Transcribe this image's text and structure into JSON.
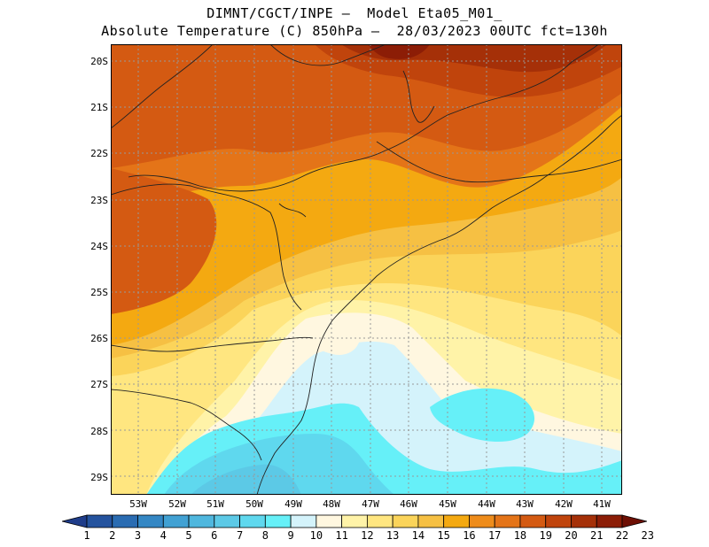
{
  "header": {
    "line1": "DIMNT/CGCT/INPE –  Model Eta05_M01_",
    "line2": "Absolute Temperature (C) 850hPa –  28/03/2023 00UTC fct=130h"
  },
  "map": {
    "lat_labels": [
      "20S",
      "21S",
      "22S",
      "23S",
      "24S",
      "25S",
      "26S",
      "27S",
      "28S",
      "29S"
    ],
    "lon_labels": [
      "53W",
      "52W",
      "51W",
      "50W",
      "49W",
      "48W",
      "47W",
      "46W",
      "45W",
      "44W",
      "43W",
      "42W",
      "41W"
    ]
  },
  "colorbar": {
    "labels": [
      "1",
      "2",
      "3",
      "4",
      "5",
      "6",
      "7",
      "8",
      "9",
      "10",
      "11",
      "12",
      "13",
      "14",
      "15",
      "16",
      "17",
      "18",
      "19",
      "20",
      "21",
      "22",
      "23"
    ],
    "colors": [
      "#1f3d8a",
      "#24539e",
      "#2a6cb2",
      "#3487c4",
      "#41a1d3",
      "#4fb7de",
      "#5cc9e6",
      "#5fd8ee",
      "#66f0f8",
      "#d4f3fb",
      "#fff7e0",
      "#fff3a8",
      "#ffe680",
      "#fbd45a",
      "#f6c043",
      "#f4a911",
      "#ee8c1b",
      "#e47418",
      "#d45a12",
      "#c0440c",
      "#a53008",
      "#8c1d06",
      "#6e0f04"
    ]
  }
}
